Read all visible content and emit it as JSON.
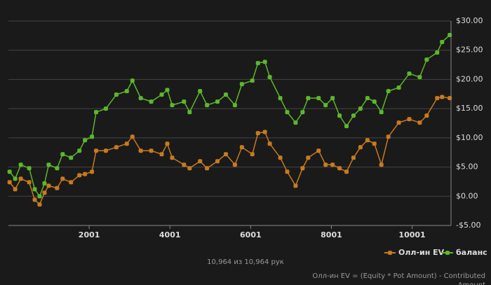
{
  "chart_data": {
    "type": "line",
    "x_ticks_note": null,
    "xlim": [
      1,
      10964
    ],
    "xticks": [
      2001,
      4001,
      6001,
      8001,
      10001
    ],
    "ylim": [
      -5,
      30
    ],
    "yticks": [
      {
        "value": -5,
        "label": "-$5.00"
      },
      {
        "value": 0,
        "label": "$0.00"
      },
      {
        "value": 5,
        "label": "$5.00"
      },
      {
        "value": 10,
        "label": "$10.00"
      },
      {
        "value": 15,
        "label": "$15.00"
      },
      {
        "value": 20,
        "label": "$20.00"
      },
      {
        "value": 25,
        "label": "$25.00"
      },
      {
        "value": 30,
        "label": "$30.00"
      }
    ],
    "grid": true,
    "x": [
      31,
      169,
      308,
      515,
      653,
      774,
      895,
      999,
      1206,
      1344,
      1551,
      1759,
      1897,
      2070,
      2173,
      2415,
      2675,
      2934,
      3072,
      3279,
      3538,
      3798,
      3936,
      4057,
      4350,
      4489,
      4748,
      4920,
      5179,
      5387,
      5611,
      5784,
      6043,
      6182,
      6354,
      6475,
      6735,
      6907,
      7114,
      7287,
      7425,
      7684,
      7857,
      8030,
      8203,
      8376,
      8548,
      8721,
      8894,
      9066,
      9239,
      9412,
      9671,
      9930,
      10189,
      10362,
      10621,
      10742,
      10933
    ],
    "series": [
      {
        "name": "Олл-ин EV",
        "color": "#c87a1e",
        "values": [
          2.4,
          1.2,
          3,
          2.4,
          -0.6,
          -1.4,
          0.6,
          1.8,
          1.4,
          3,
          2.4,
          3.6,
          3.8,
          4.2,
          7.8,
          7.8,
          8.4,
          9,
          10.2,
          7.8,
          7.8,
          7.2,
          9,
          6.6,
          5.4,
          4.8,
          6,
          4.8,
          6,
          7.2,
          5.4,
          8.4,
          7.2,
          10.8,
          11,
          9,
          6.6,
          4.2,
          1.8,
          4.8,
          6.6,
          7.8,
          5.4,
          5.4,
          4.8,
          4.2,
          6.6,
          8.4,
          9.6,
          9,
          5.4,
          10.2,
          12.6,
          13.2,
          12.6,
          13.8,
          16.8,
          17,
          16.8
        ]
      },
      {
        "name": "баланс",
        "color": "#5cb82a",
        "values": [
          4.2,
          3,
          5.4,
          4.8,
          1.2,
          0,
          2.2,
          5.4,
          4.8,
          7.2,
          6.6,
          7.8,
          9.6,
          10.2,
          14.4,
          15,
          17.4,
          18,
          19.8,
          16.8,
          16.2,
          17.4,
          18.2,
          15.6,
          16.2,
          14.4,
          18,
          15.6,
          16.2,
          17.4,
          15.6,
          19.2,
          19.8,
          22.8,
          23,
          20.4,
          16.8,
          14.4,
          12.6,
          14.4,
          16.8,
          16.8,
          15.6,
          16.8,
          13.8,
          12,
          13.8,
          15,
          16.8,
          16.2,
          14.4,
          18,
          18.6,
          21,
          20.4,
          23.4,
          24.6,
          26.4,
          27.6
        ]
      }
    ],
    "caption": "10,964 из 10,964 рук",
    "footnote": "Олл-ин EV = (Equity * Pot Amount) - Contributed Amount"
  }
}
